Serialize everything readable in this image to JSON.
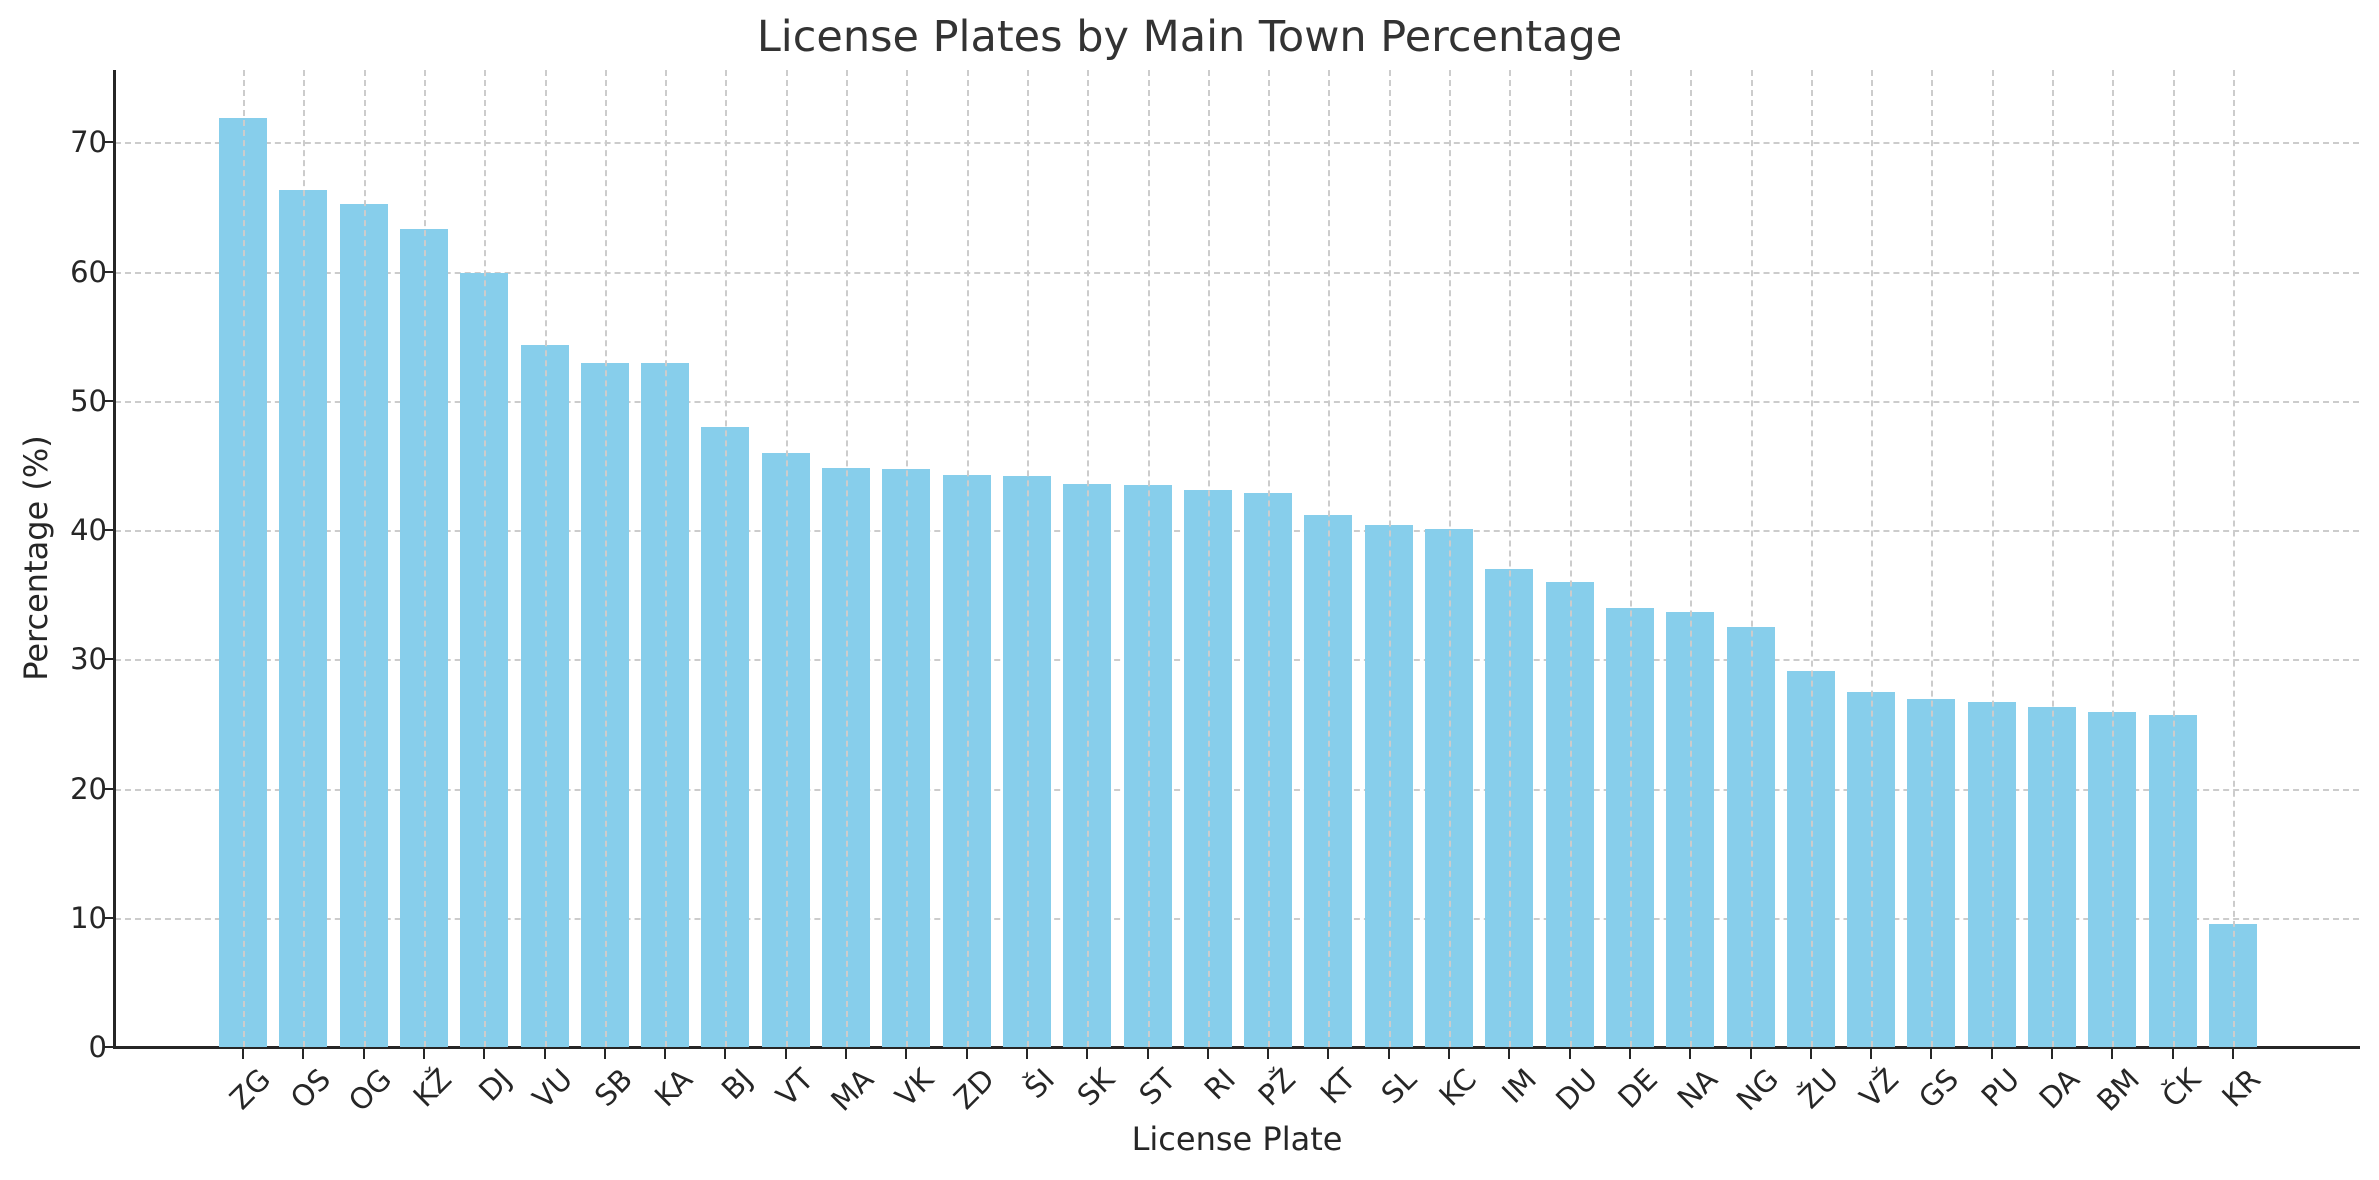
{
  "chart_data": {
    "type": "bar",
    "title": "License Plates by Main Town Percentage",
    "xlabel": "License Plate",
    "ylabel": "Percentage (%)",
    "ylim": [
      0,
      75.6
    ],
    "yticks": [
      0,
      10,
      20,
      30,
      40,
      50,
      60,
      70
    ],
    "grid": true,
    "legend": null,
    "bar_color": "#87ceeb",
    "categories": [
      "ZG",
      "OS",
      "OG",
      "KŽ",
      "DJ",
      "VU",
      "SB",
      "KA",
      "BJ",
      "VT",
      "MA",
      "VK",
      "ZD",
      "ŠI",
      "SK",
      "ST",
      "RI",
      "PŽ",
      "KT",
      "SL",
      "KC",
      "IM",
      "DU",
      "DE",
      "NA",
      "NG",
      "ŽU",
      "VŽ",
      "GS",
      "PU",
      "DA",
      "BM",
      "ČK",
      "KR"
    ],
    "values": [
      71.9,
      66.3,
      65.2,
      63.3,
      59.9,
      54.3,
      52.9,
      52.9,
      48.0,
      46.0,
      44.8,
      44.7,
      44.3,
      44.2,
      43.6,
      43.5,
      43.1,
      42.9,
      41.2,
      40.4,
      40.1,
      37.0,
      36.0,
      34.0,
      33.7,
      32.5,
      29.1,
      27.5,
      26.9,
      26.7,
      26.3,
      25.9,
      25.7,
      9.5
    ]
  }
}
